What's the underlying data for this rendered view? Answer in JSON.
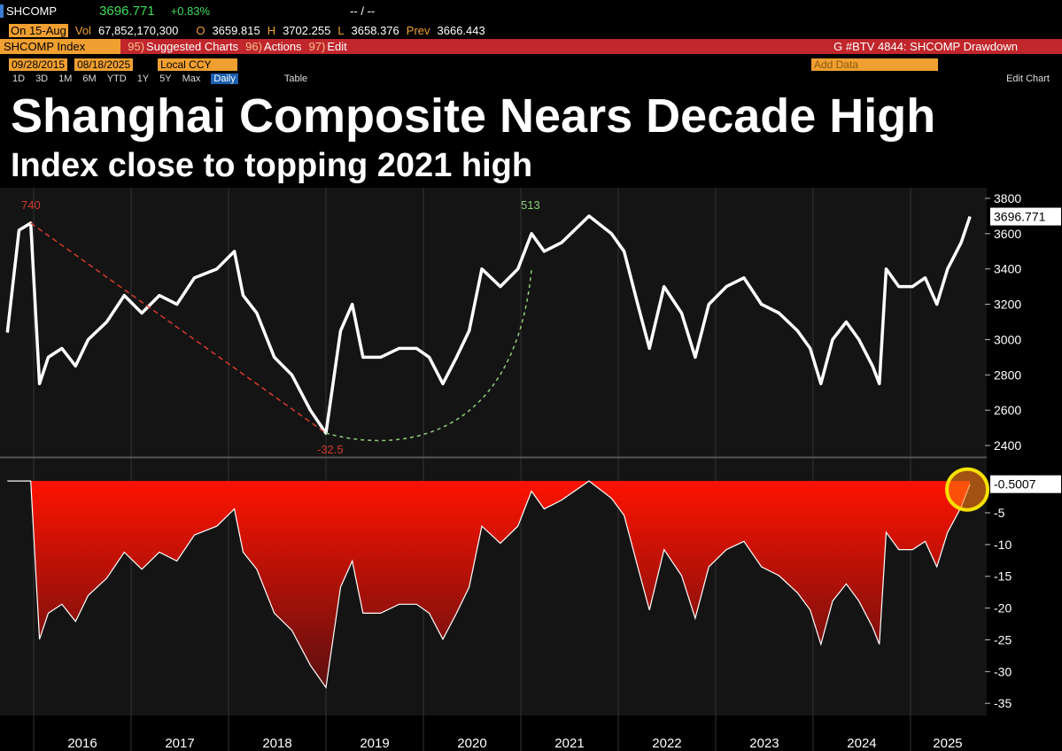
{
  "header": {
    "ticker": "SHCOMP",
    "price": "3696.771",
    "change": "+0.83%",
    "bid_ask": "-- / --",
    "date": "On 15-Aug",
    "volume": {
      "label": "Vol",
      "value": "67,852,170,300"
    },
    "open": {
      "label": "O",
      "value": "3659.815"
    },
    "high": {
      "label": "H",
      "value": "3702.255"
    },
    "low": {
      "label": "L",
      "value": "3658.376"
    },
    "prev": {
      "label": "Prev",
      "value": "3666.443"
    }
  },
  "toolbar": {
    "security": "SHCOMP Index",
    "menus": [
      {
        "key": "95)",
        "label": "Suggested Charts"
      },
      {
        "key": "96)",
        "label": "Actions"
      },
      {
        "key": "97)",
        "label": "Edit"
      }
    ],
    "chart_name": "G #BTV 4844: SHCOMP Drawdown"
  },
  "date_bar": {
    "start": "09/28/2015",
    "end": "08/18/2025",
    "currency": "Local CCY",
    "add_data": "Add Data",
    "edit_chart": "Edit Chart"
  },
  "periods": [
    "1D",
    "3D",
    "1M",
    "6M",
    "YTD",
    "1Y",
    "5Y",
    "Max"
  ],
  "frequency": "Daily",
  "table": "Table",
  "headline": {
    "title": "Shanghai Composite Nears Decade High",
    "subtitle": "Index close to topping 2021 high"
  },
  "chart_data": [
    {
      "type": "line",
      "color": "#ffffff",
      "x": [
        2015.73,
        2015.85,
        2015.97,
        2016.06,
        2016.15,
        2016.29,
        2016.43,
        2016.56,
        2016.75,
        2016.93,
        2017.11,
        2017.29,
        2017.47,
        2017.65,
        2017.88,
        2018.06,
        2018.15,
        2018.29,
        2018.47,
        2018.65,
        2018.84,
        2019.0,
        2019.15,
        2019.27,
        2019.38,
        2019.56,
        2019.75,
        2019.93,
        2020.06,
        2020.2,
        2020.34,
        2020.47,
        2020.6,
        2020.79,
        2020.97,
        2021.11,
        2021.24,
        2021.42,
        2021.7,
        2021.93,
        2022.06,
        2022.2,
        2022.32,
        2022.47,
        2022.65,
        2022.79,
        2022.93,
        2023.11,
        2023.29,
        2023.47,
        2023.65,
        2023.84,
        2023.97,
        2024.08,
        2024.2,
        2024.34,
        2024.47,
        2024.61,
        2024.68,
        2024.75,
        2024.88,
        2025.02,
        2025.15,
        2025.27,
        2025.38,
        2025.52,
        2025.61
      ],
      "values": [
        3040,
        3620,
        3660,
        2750,
        2900,
        2950,
        2850,
        3000,
        3100,
        3250,
        3150,
        3250,
        3200,
        3350,
        3400,
        3500,
        3250,
        3150,
        2900,
        2800,
        2600,
        2470,
        3050,
        3200,
        2900,
        2900,
        2950,
        2950,
        2900,
        2750,
        2900,
        3050,
        3400,
        3300,
        3400,
        3600,
        3500,
        3550,
        3700,
        3600,
        3500,
        3200,
        2950,
        3300,
        3150,
        2900,
        3200,
        3300,
        3350,
        3200,
        3150,
        3050,
        2950,
        2750,
        3000,
        3100,
        3000,
        2850,
        2750,
        3400,
        3300,
        3300,
        3350,
        3200,
        3400,
        3550,
        3696.771
      ],
      "last_value_label": "3696.771",
      "xlim": [
        2015.727,
        2025.764
      ],
      "xticks": [
        2016,
        2017,
        2018,
        2019,
        2020,
        2021,
        2022,
        2023,
        2024,
        2025
      ],
      "ylim": [
        2340,
        3845
      ],
      "yticks": [
        2400,
        2600,
        2800,
        3000,
        3200,
        3400,
        3600,
        3800
      ],
      "annotations": [
        {
          "text": "740",
          "color": "#d43a2a"
        },
        {
          "text": "513",
          "color": "#8fce7a"
        },
        {
          "text": "-32.5",
          "color": "#d43a2a"
        }
      ]
    },
    {
      "type": "area",
      "color": "#ffffff",
      "fill_color": "#ff1200",
      "x": [
        2015.73,
        2015.85,
        2015.97,
        2016.06,
        2016.15,
        2016.29,
        2016.43,
        2016.56,
        2016.75,
        2016.93,
        2017.11,
        2017.29,
        2017.47,
        2017.65,
        2017.88,
        2018.06,
        2018.15,
        2018.29,
        2018.47,
        2018.65,
        2018.84,
        2019.0,
        2019.15,
        2019.27,
        2019.38,
        2019.56,
        2019.75,
        2019.93,
        2020.06,
        2020.2,
        2020.34,
        2020.47,
        2020.6,
        2020.79,
        2020.97,
        2021.11,
        2021.24,
        2021.42,
        2021.7,
        2021.93,
        2022.06,
        2022.2,
        2022.32,
        2022.47,
        2022.65,
        2022.79,
        2022.93,
        2023.11,
        2023.29,
        2023.47,
        2023.65,
        2023.84,
        2023.97,
        2024.08,
        2024.2,
        2024.34,
        2024.47,
        2024.61,
        2024.68,
        2024.75,
        2024.88,
        2025.02,
        2025.15,
        2025.27,
        2025.38,
        2025.52,
        2025.61
      ],
      "values": [
        0,
        0,
        0,
        -24.9,
        -20.8,
        -19.4,
        -22.1,
        -18,
        -15.3,
        -11.2,
        -13.9,
        -11.2,
        -12.6,
        -8.5,
        -7.1,
        -4.4,
        -11.2,
        -13.9,
        -20.8,
        -23.5,
        -29,
        -32.5,
        -16.7,
        -12.6,
        -20.8,
        -20.8,
        -19.4,
        -19.4,
        -20.8,
        -24.9,
        -20.8,
        -16.7,
        -7.1,
        -9.8,
        -7.1,
        -1.6,
        -4.4,
        -3,
        0,
        -2.7,
        -5.4,
        -13.5,
        -20.3,
        -10.8,
        -14.9,
        -21.6,
        -13.5,
        -10.8,
        -9.5,
        -13.5,
        -14.9,
        -17.6,
        -20.3,
        -25.7,
        -18.9,
        -16.2,
        -18.9,
        -23,
        -25.7,
        -8.1,
        -10.8,
        -10.8,
        -9.5,
        -13.5,
        -8.1,
        -4.1,
        -0.5007
      ],
      "last_value_label": "-0.5007",
      "xlim": [
        2015.727,
        2025.764
      ],
      "xticks": [
        2016,
        2017,
        2018,
        2019,
        2020,
        2021,
        2022,
        2023,
        2024,
        2025
      ],
      "ylim": [
        -36.5,
        3.5
      ],
      "yticks": [
        -5,
        -10,
        -15,
        -20,
        -25,
        -30,
        -35
      ]
    }
  ]
}
